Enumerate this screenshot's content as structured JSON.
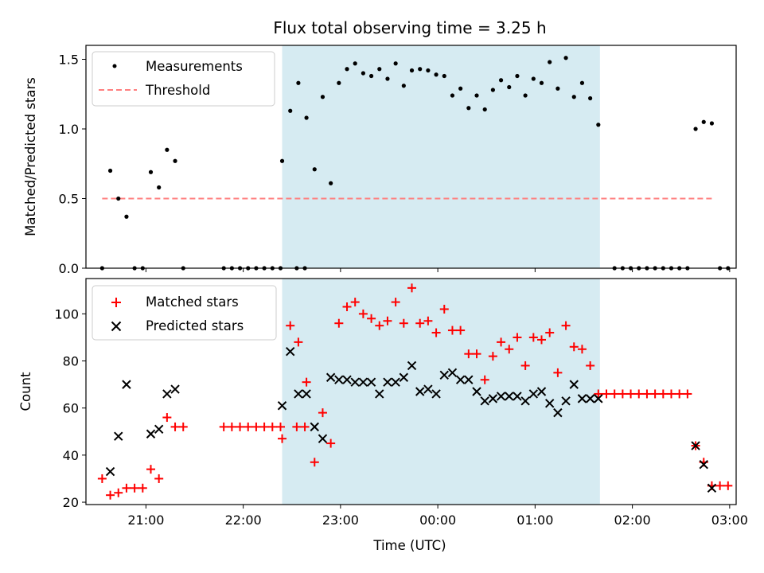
{
  "chart_data": [
    {
      "type": "scatter",
      "title": "Flux total observing time = 3.25 h",
      "xlabel": "",
      "ylabel": "Matched/Predicted stars",
      "ylim": [
        0,
        1.6
      ],
      "yticks": [
        "0.0",
        "0.5",
        "1.0",
        "1.5"
      ],
      "xlim": [
        "20:23",
        "03:04"
      ],
      "shaded_interval": [
        "22:24",
        "01:40"
      ],
      "shade_color": "#add8e6",
      "legend_position": "upper left",
      "series": [
        {
          "name": "Measurements",
          "marker": "dot",
          "color": "#000000",
          "points": [
            [
              "20:33",
              0.0
            ],
            [
              "20:38",
              0.7
            ],
            [
              "20:43",
              0.5
            ],
            [
              "20:48",
              0.37
            ],
            [
              "20:53",
              0.0
            ],
            [
              "20:58",
              0.0
            ],
            [
              "21:03",
              0.69
            ],
            [
              "21:08",
              0.58
            ],
            [
              "21:13",
              0.85
            ],
            [
              "21:18",
              0.77
            ],
            [
              "21:23",
              0.0
            ],
            [
              "21:48",
              0.0
            ],
            [
              "21:53",
              0.0
            ],
            [
              "21:58",
              0.0
            ],
            [
              "22:03",
              0.0
            ],
            [
              "22:08",
              0.0
            ],
            [
              "22:13",
              0.0
            ],
            [
              "22:18",
              0.0
            ],
            [
              "22:23",
              0.0
            ],
            [
              "22:33",
              0.0
            ],
            [
              "22:38",
              0.0
            ],
            [
              "22:24",
              0.77
            ],
            [
              "22:29",
              1.13
            ],
            [
              "22:34",
              1.33
            ],
            [
              "22:39",
              1.08
            ],
            [
              "22:44",
              0.71
            ],
            [
              "22:49",
              1.23
            ],
            [
              "22:54",
              0.61
            ],
            [
              "22:59",
              1.33
            ],
            [
              "23:04",
              1.43
            ],
            [
              "23:09",
              1.47
            ],
            [
              "23:14",
              1.4
            ],
            [
              "23:19",
              1.38
            ],
            [
              "23:24",
              1.43
            ],
            [
              "23:29",
              1.36
            ],
            [
              "23:34",
              1.47
            ],
            [
              "23:39",
              1.31
            ],
            [
              "23:44",
              1.42
            ],
            [
              "23:49",
              1.43
            ],
            [
              "23:54",
              1.42
            ],
            [
              "23:59",
              1.39
            ],
            [
              "00:04",
              1.38
            ],
            [
              "00:09",
              1.24
            ],
            [
              "00:14",
              1.29
            ],
            [
              "00:19",
              1.15
            ],
            [
              "00:24",
              1.24
            ],
            [
              "00:29",
              1.14
            ],
            [
              "00:34",
              1.28
            ],
            [
              "00:39",
              1.35
            ],
            [
              "00:44",
              1.3
            ],
            [
              "00:49",
              1.38
            ],
            [
              "00:54",
              1.24
            ],
            [
              "00:59",
              1.36
            ],
            [
              "01:04",
              1.33
            ],
            [
              "01:09",
              1.48
            ],
            [
              "01:14",
              1.29
            ],
            [
              "01:19",
              1.51
            ],
            [
              "01:24",
              1.23
            ],
            [
              "01:29",
              1.33
            ],
            [
              "01:34",
              1.22
            ],
            [
              "01:39",
              1.03
            ],
            [
              "01:49",
              0.0
            ],
            [
              "01:54",
              0.0
            ],
            [
              "01:59",
              0.0
            ],
            [
              "02:04",
              0.0
            ],
            [
              "02:09",
              0.0
            ],
            [
              "02:14",
              0.0
            ],
            [
              "02:19",
              0.0
            ],
            [
              "02:24",
              0.0
            ],
            [
              "02:29",
              0.0
            ],
            [
              "02:34",
              0.0
            ],
            [
              "02:39",
              1.0
            ],
            [
              "02:44",
              1.05
            ],
            [
              "02:49",
              1.04
            ],
            [
              "02:54",
              0.0
            ],
            [
              "02:59",
              0.0
            ]
          ]
        },
        {
          "name": "Threshold",
          "style": "dashed-line",
          "color": "#ff7f7f",
          "points": [
            [
              "20:33",
              0.5
            ],
            [
              "02:50",
              0.5
            ]
          ]
        }
      ]
    },
    {
      "type": "scatter",
      "title": "",
      "xlabel": "Time (UTC)",
      "ylabel": "Count",
      "ylim": [
        19,
        115
      ],
      "yticks": [
        "20",
        "40",
        "60",
        "80",
        "100"
      ],
      "xlim": [
        "20:23",
        "03:04"
      ],
      "xticks": [
        "21:00",
        "22:00",
        "23:00",
        "00:00",
        "01:00",
        "02:00",
        "03:00"
      ],
      "shaded_interval": [
        "22:24",
        "01:40"
      ],
      "shade_color": "#add8e6",
      "legend_position": "upper left",
      "series": [
        {
          "name": "Matched stars",
          "marker": "plus",
          "color": "#ff0000",
          "points": [
            [
              "20:33",
              30
            ],
            [
              "20:38",
              23
            ],
            [
              "20:43",
              24
            ],
            [
              "20:48",
              26
            ],
            [
              "20:53",
              26
            ],
            [
              "20:58",
              26
            ],
            [
              "21:03",
              34
            ],
            [
              "21:08",
              30
            ],
            [
              "21:13",
              56
            ],
            [
              "21:18",
              52
            ],
            [
              "21:23",
              52
            ],
            [
              "21:48",
              52
            ],
            [
              "21:53",
              52
            ],
            [
              "21:58",
              52
            ],
            [
              "22:03",
              52
            ],
            [
              "22:08",
              52
            ],
            [
              "22:13",
              52
            ],
            [
              "22:18",
              52
            ],
            [
              "22:23",
              52
            ],
            [
              "22:33",
              52
            ],
            [
              "22:38",
              52
            ],
            [
              "22:24",
              47
            ],
            [
              "22:29",
              95
            ],
            [
              "22:34",
              88
            ],
            [
              "22:39",
              71
            ],
            [
              "22:44",
              37
            ],
            [
              "22:49",
              58
            ],
            [
              "22:54",
              45
            ],
            [
              "22:59",
              96
            ],
            [
              "23:04",
              103
            ],
            [
              "23:09",
              105
            ],
            [
              "23:14",
              100
            ],
            [
              "23:19",
              98
            ],
            [
              "23:24",
              95
            ],
            [
              "23:29",
              97
            ],
            [
              "23:34",
              105
            ],
            [
              "23:39",
              96
            ],
            [
              "23:44",
              111
            ],
            [
              "23:49",
              96
            ],
            [
              "23:54",
              97
            ],
            [
              "23:59",
              92
            ],
            [
              "00:04",
              102
            ],
            [
              "00:09",
              93
            ],
            [
              "00:14",
              93
            ],
            [
              "00:19",
              83
            ],
            [
              "00:24",
              83
            ],
            [
              "00:29",
              72
            ],
            [
              "00:34",
              82
            ],
            [
              "00:39",
              88
            ],
            [
              "00:44",
              85
            ],
            [
              "00:49",
              90
            ],
            [
              "00:54",
              78
            ],
            [
              "00:59",
              90
            ],
            [
              "01:04",
              89
            ],
            [
              "01:09",
              92
            ],
            [
              "01:14",
              75
            ],
            [
              "01:19",
              95
            ],
            [
              "01:24",
              86
            ],
            [
              "01:29",
              85
            ],
            [
              "01:34",
              78
            ],
            [
              "01:39",
              66
            ],
            [
              "01:44",
              66
            ],
            [
              "01:49",
              66
            ],
            [
              "01:54",
              66
            ],
            [
              "01:59",
              66
            ],
            [
              "02:04",
              66
            ],
            [
              "02:09",
              66
            ],
            [
              "02:14",
              66
            ],
            [
              "02:19",
              66
            ],
            [
              "02:24",
              66
            ],
            [
              "02:29",
              66
            ],
            [
              "02:34",
              66
            ],
            [
              "02:39",
              44
            ],
            [
              "02:44",
              37
            ],
            [
              "02:49",
              27
            ],
            [
              "02:54",
              27
            ],
            [
              "02:59",
              27
            ]
          ]
        },
        {
          "name": "Predicted stars",
          "marker": "x",
          "color": "#000000",
          "points": [
            [
              "20:38",
              33
            ],
            [
              "20:43",
              48
            ],
            [
              "20:48",
              70
            ],
            [
              "21:03",
              49
            ],
            [
              "21:08",
              51
            ],
            [
              "21:13",
              66
            ],
            [
              "21:18",
              68
            ],
            [
              "22:24",
              61
            ],
            [
              "22:29",
              84
            ],
            [
              "22:34",
              66
            ],
            [
              "22:39",
              66
            ],
            [
              "22:44",
              52
            ],
            [
              "22:49",
              47
            ],
            [
              "22:54",
              73
            ],
            [
              "22:59",
              72
            ],
            [
              "23:04",
              72
            ],
            [
              "23:09",
              71
            ],
            [
              "23:14",
              71
            ],
            [
              "23:19",
              71
            ],
            [
              "23:24",
              66
            ],
            [
              "23:29",
              71
            ],
            [
              "23:34",
              71
            ],
            [
              "23:39",
              73
            ],
            [
              "23:44",
              78
            ],
            [
              "23:49",
              67
            ],
            [
              "23:54",
              68
            ],
            [
              "23:59",
              66
            ],
            [
              "00:04",
              74
            ],
            [
              "00:09",
              75
            ],
            [
              "00:14",
              72
            ],
            [
              "00:19",
              72
            ],
            [
              "00:24",
              67
            ],
            [
              "00:29",
              63
            ],
            [
              "00:34",
              64
            ],
            [
              "00:39",
              65
            ],
            [
              "00:44",
              65
            ],
            [
              "00:49",
              65
            ],
            [
              "00:54",
              63
            ],
            [
              "00:59",
              66
            ],
            [
              "01:04",
              67
            ],
            [
              "01:09",
              62
            ],
            [
              "01:14",
              58
            ],
            [
              "01:19",
              63
            ],
            [
              "01:24",
              70
            ],
            [
              "01:29",
              64
            ],
            [
              "01:34",
              64
            ],
            [
              "01:39",
              64
            ],
            [
              "02:39",
              44
            ],
            [
              "02:44",
              36
            ],
            [
              "02:49",
              26
            ]
          ]
        }
      ]
    }
  ]
}
